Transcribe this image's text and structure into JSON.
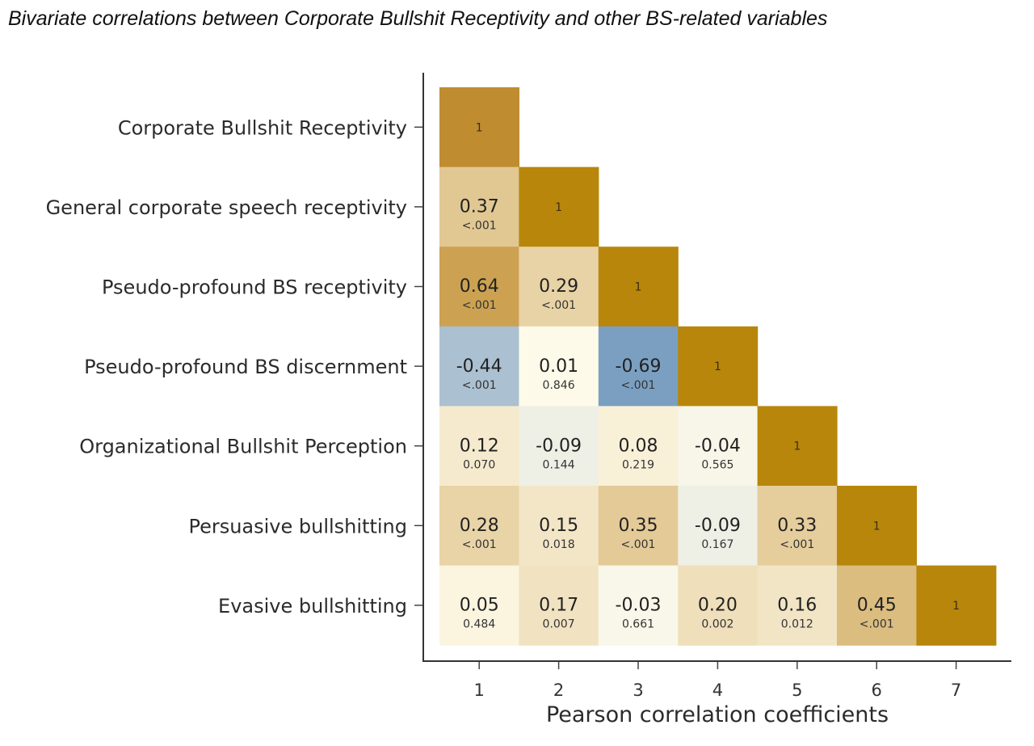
{
  "chart_data": {
    "type": "heatmap",
    "title": "Bivariate correlations between Corporate Bullshit Receptivity and other BS-related variables",
    "xlabel": "Pearson correlation coefficients",
    "ylabel": "",
    "x_ticks": [
      "1",
      "2",
      "3",
      "4",
      "5",
      "6",
      "7"
    ],
    "rows": [
      "Corporate Bullshit Receptivity",
      "General corporate speech receptivity",
      "Pseudo-profound BS receptivity",
      "Pseudo-profound BS discernment",
      "Organizational Bullshit Perception",
      "Persuasive bullshitting",
      "Evasive bullshitting"
    ],
    "color_scale": {
      "negative": "#6f97bd",
      "zero": "#fffbeb",
      "positive": "#bf8c2c",
      "diagonal": "#b8860b"
    },
    "cells": [
      [
        {
          "r": "1",
          "p": ""
        }
      ],
      [
        {
          "r": "0.37",
          "p": "<.001"
        },
        {
          "r": "1",
          "p": ""
        }
      ],
      [
        {
          "r": "0.64",
          "p": "<.001"
        },
        {
          "r": "0.29",
          "p": "<.001"
        },
        {
          "r": "1",
          "p": ""
        }
      ],
      [
        {
          "r": "-0.44",
          "p": "<.001"
        },
        {
          "r": "0.01",
          "p": "0.846"
        },
        {
          "r": "-0.69",
          "p": "<.001"
        },
        {
          "r": "1",
          "p": ""
        }
      ],
      [
        {
          "r": "0.12",
          "p": "0.070"
        },
        {
          "r": "-0.09",
          "p": "0.144"
        },
        {
          "r": "0.08",
          "p": "0.219"
        },
        {
          "r": "-0.04",
          "p": "0.565"
        },
        {
          "r": "1",
          "p": ""
        }
      ],
      [
        {
          "r": "0.28",
          "p": "<.001"
        },
        {
          "r": "0.15",
          "p": "0.018"
        },
        {
          "r": "0.35",
          "p": "<.001"
        },
        {
          "r": "-0.09",
          "p": "0.167"
        },
        {
          "r": "0.33",
          "p": "<.001"
        },
        {
          "r": "1",
          "p": ""
        }
      ],
      [
        {
          "r": "0.05",
          "p": "0.484"
        },
        {
          "r": "0.17",
          "p": "0.007"
        },
        {
          "r": "-0.03",
          "p": "0.661"
        },
        {
          "r": "0.20",
          "p": "0.002"
        },
        {
          "r": "0.16",
          "p": "0.012"
        },
        {
          "r": "0.45",
          "p": "<.001"
        },
        {
          "r": "1",
          "p": ""
        }
      ]
    ]
  }
}
